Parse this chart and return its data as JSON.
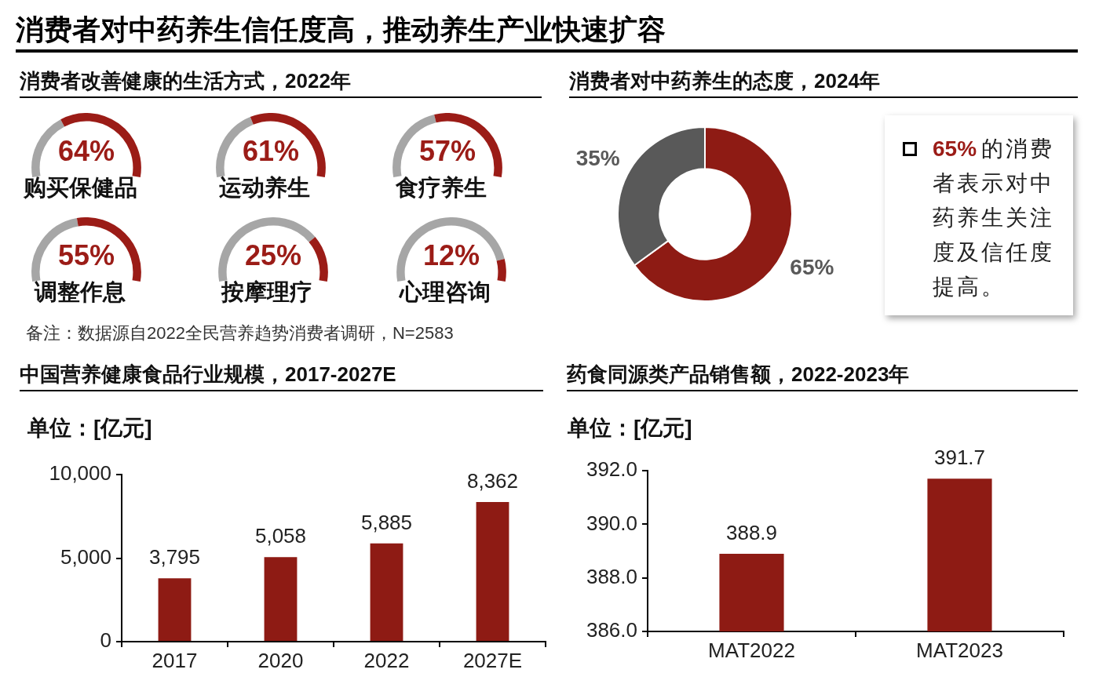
{
  "chart_data": [
    {
      "type": "other",
      "title": "消费者对中药养生信任度高，推动养生产业快速扩容",
      "subtitle": "消费者改善健康的生活方式，2022年",
      "annotations": [
        "备注：数据源自2022全民营养趋势消费者调研，N=2583"
      ]
    },
    {
      "type": "donut",
      "title": "购买保健品",
      "annotations": [
        "64%"
      ],
      "categories": [
        null,
        null
      ],
      "values": [
        36,
        64
      ],
      "colors": [
        "#a6a6a6",
        "#9b1c17"
      ]
    },
    {
      "type": "donut",
      "title": "运动养生",
      "annotations": [
        "61%"
      ],
      "categories": [
        null,
        null
      ],
      "values": [
        39,
        61
      ],
      "colors": [
        "#a6a6a6",
        "#9b1c17"
      ]
    },
    {
      "type": "donut",
      "title": "食疗养生",
      "annotations": [
        "57%"
      ],
      "categories": [
        null,
        null
      ],
      "values": [
        43,
        57
      ],
      "colors": [
        "#a6a6a6",
        "#9b1c17"
      ]
    },
    {
      "type": "donut",
      "title": "调整作息",
      "annotations": [
        "55%"
      ],
      "categories": [
        null,
        null
      ],
      "values": [
        45,
        55
      ],
      "colors": [
        "#a6a6a6",
        "#9b1c17"
      ]
    },
    {
      "type": "donut",
      "title": "按摩理疗",
      "annotations": [
        "25%"
      ],
      "categories": [
        null,
        null
      ],
      "values": [
        75,
        25
      ],
      "colors": [
        "#a6a6a6",
        "#9b1c17"
      ]
    },
    {
      "type": "donut",
      "title": "心理咨询",
      "annotations": [
        "12%"
      ],
      "categories": [
        null,
        null
      ],
      "values": [
        88,
        12
      ],
      "colors": [
        "#a6a6a6",
        "#9b1c17"
      ]
    },
    {
      "type": "donut",
      "title": "消费者对中药养生的态度，2024年",
      "categories": [
        null,
        null
      ],
      "values": [
        65,
        35
      ],
      "colors": [
        "#8e1b14",
        "#595959"
      ],
      "value_labels": [
        "65%",
        "35%"
      ]
    },
    {
      "type": "other",
      "annotations": [
        "65%",
        "的消费者表示对中药养生关注度及信任度提高。"
      ]
    },
    {
      "type": "bar",
      "title": "中国营养健康食品行业规模，2017-2027E",
      "ylabel": "单位：[亿元]",
      "categories": [
        "2017",
        "2020",
        "2022",
        "2027E"
      ],
      "values": [
        3795,
        5058,
        5885,
        8362
      ],
      "color": "#8e1b14",
      "ylim": [
        0,
        10000
      ],
      "yticks": [
        0,
        {
          "value": 5000,
          "label": "5,000"
        },
        {
          "value": 10000,
          "label": "10,000"
        }
      ],
      "value_labels": [
        "3,795",
        "5,058",
        "5,885",
        "8,362"
      ]
    },
    {
      "type": "bar",
      "title": "药食同源类产品销售额，2022-2023年",
      "ylabel": "单位：[亿元]",
      "categories": [
        "MAT2022",
        "MAT2023"
      ],
      "values": [
        388.9,
        391.7
      ],
      "color": "#8e1b14",
      "ylim": [
        386,
        392
      ],
      "yticks": [
        {
          "value": 386,
          "label": "386.0"
        },
        {
          "value": 388,
          "label": "388.0"
        },
        {
          "value": 390,
          "label": "390.0"
        },
        {
          "value": 392,
          "label": "392.0"
        }
      ],
      "value_labels": [
        "388.9",
        "391.7"
      ]
    }
  ]
}
